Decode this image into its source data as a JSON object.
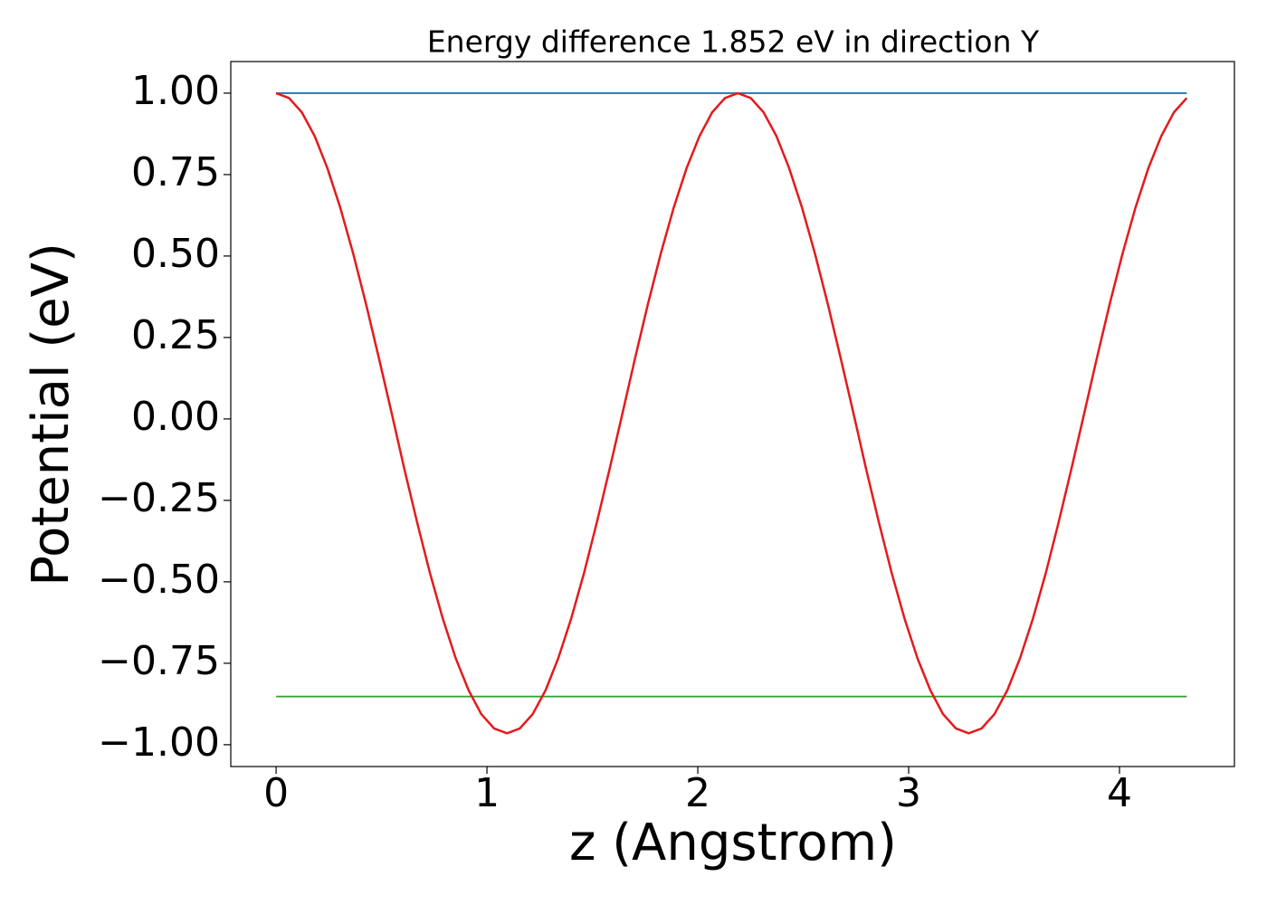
{
  "chart_data": {
    "type": "line",
    "title": "Energy difference 1.852 eV in direction Y",
    "xlabel": "z (Angstrom)",
    "ylabel": "Potential (eV)",
    "xlim": [
      -0.215,
      4.545
    ],
    "ylim": [
      -1.067,
      1.097
    ],
    "xticks": [
      0,
      1,
      2,
      3,
      4
    ],
    "yticks": [
      {
        "value": 1,
        "label": "1.00"
      },
      {
        "value": 0.75,
        "label": "0.75"
      },
      {
        "value": 0.5,
        "label": "0.50"
      },
      {
        "value": 0.25,
        "label": "0.25"
      },
      {
        "value": 0,
        "label": "0.00"
      },
      {
        "value": -0.25,
        "label": "−0.25"
      },
      {
        "value": -0.5,
        "label": "−0.50"
      },
      {
        "value": -0.75,
        "label": "−0.75"
      },
      {
        "value": -1,
        "label": "−1.00"
      }
    ],
    "series": [
      {
        "color": "#1f77b4",
        "x": [
          0,
          4.319
        ],
        "values": [
          1,
          1
        ]
      },
      {
        "color": "#2ca02c",
        "x": [
          0,
          4.319
        ],
        "values": [
          -0.852,
          -0.852
        ]
      },
      {
        "color": "#e41a1c",
        "x": [
          0,
          0.061,
          0.122,
          0.183,
          0.243,
          0.304,
          0.365,
          0.426,
          0.487,
          0.548,
          0.608,
          0.669,
          0.73,
          0.791,
          0.852,
          0.913,
          0.973,
          1.034,
          1.095,
          1.156,
          1.217,
          1.278,
          1.338,
          1.399,
          1.46,
          1.521,
          1.582,
          1.643,
          1.703,
          1.764,
          1.825,
          1.886,
          1.947,
          2.008,
          2.068,
          2.129,
          2.19,
          2.251,
          2.312,
          2.373,
          2.433,
          2.494,
          2.555,
          2.616,
          2.677,
          2.738,
          2.798,
          2.859,
          2.92,
          2.981,
          3.042,
          3.103,
          3.163,
          3.224,
          3.285,
          3.346,
          3.407,
          3.468,
          3.528,
          3.589,
          3.65,
          3.711,
          3.772,
          3.833,
          3.893,
          3.954,
          4.015,
          4.076,
          4.137,
          4.198,
          4.258,
          4.319
        ],
        "values": [
          1.0,
          0.985,
          0.941,
          0.868,
          0.77,
          0.649,
          0.509,
          0.354,
          0.188,
          0.018,
          -0.153,
          -0.318,
          -0.474,
          -0.614,
          -0.735,
          -0.833,
          -0.906,
          -0.95,
          -0.965,
          -0.95,
          -0.906,
          -0.833,
          -0.735,
          -0.614,
          -0.474,
          -0.318,
          -0.153,
          0.018,
          0.188,
          0.354,
          0.509,
          0.649,
          0.77,
          0.868,
          0.941,
          0.985,
          1.0,
          0.985,
          0.941,
          0.868,
          0.77,
          0.649,
          0.509,
          0.354,
          0.188,
          0.018,
          -0.153,
          -0.318,
          -0.474,
          -0.614,
          -0.735,
          -0.833,
          -0.906,
          -0.95,
          -0.965,
          -0.95,
          -0.906,
          -0.833,
          -0.735,
          -0.614,
          -0.474,
          -0.318,
          -0.153,
          0.018,
          0.188,
          0.354,
          0.509,
          0.649,
          0.77,
          0.868,
          0.941,
          0.985
        ]
      }
    ]
  }
}
